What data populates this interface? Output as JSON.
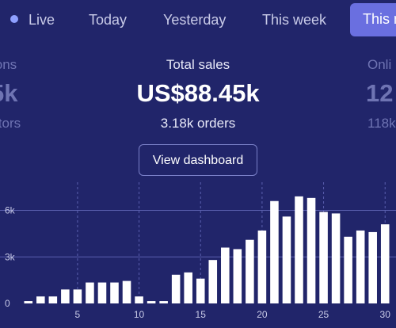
{
  "tabs": [
    {
      "label": "Live",
      "active": false
    },
    {
      "label": "Today",
      "active": false
    },
    {
      "label": "Yesterday",
      "active": false
    },
    {
      "label": "This week",
      "active": false
    },
    {
      "label": "This m",
      "active": true
    }
  ],
  "stats": {
    "left": {
      "label": "ions",
      "value": "5k",
      "sub": "itors"
    },
    "main": {
      "label": "Total sales",
      "value": "US$88.45k",
      "sub": "3.18k orders"
    },
    "right": {
      "label": "Onli",
      "value": "12",
      "sub": "118k"
    }
  },
  "dashboard_button": "View dashboard",
  "colors": {
    "background": "#21256a",
    "bar": "#ffffff",
    "accent": "#6a6fe0",
    "muted": "#6f74b3"
  },
  "chart_data": {
    "type": "bar",
    "x": [
      1,
      2,
      3,
      4,
      5,
      6,
      7,
      8,
      9,
      10,
      11,
      12,
      13,
      14,
      15,
      16,
      17,
      18,
      19,
      20,
      21,
      22,
      23,
      24,
      25,
      26,
      27,
      28,
      29,
      30
    ],
    "values": [
      150,
      450,
      450,
      900,
      900,
      1350,
      1350,
      1350,
      1450,
      450,
      150,
      150,
      1850,
      2000,
      1600,
      2800,
      3600,
      3500,
      4100,
      4700,
      6600,
      5600,
      6900,
      6800,
      5900,
      5800,
      4300,
      4700,
      4600,
      5100
    ],
    "x_ticks": [
      "5",
      "10",
      "15",
      "20",
      "25",
      "30"
    ],
    "x_tick_values": [
      5,
      10,
      15,
      20,
      25,
      30
    ],
    "y_ticks": [
      "0",
      "3k",
      "6k"
    ],
    "y_tick_values": [
      0,
      3000,
      6000
    ],
    "ylim": [
      0,
      7200
    ],
    "grid": true
  }
}
